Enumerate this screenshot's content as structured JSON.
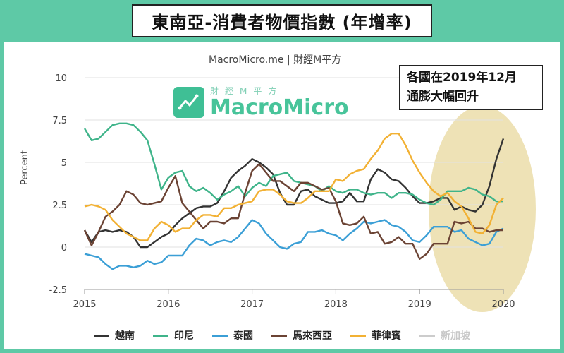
{
  "title": "東南亞-消費者物價指數 (年增率)",
  "source": "MacroMicro.me | 財經M平方",
  "watermark": {
    "sub": "財經M平方",
    "main": "MacroMicro"
  },
  "callout": {
    "line1": "各國在2019年12月",
    "line2": "通膨大幅回升"
  },
  "colors": {
    "background": "#5ec9a6",
    "highlight": "#ecdfae"
  },
  "chart_data": {
    "type": "line",
    "ylabel": "Percent",
    "ylim": [
      -2.5,
      10
    ],
    "yticks": [
      -2.5,
      0,
      2.5,
      5,
      7.5,
      10
    ],
    "xlim": [
      2015,
      2020
    ],
    "xticks": [
      2015,
      2016,
      2017,
      2018,
      2019,
      2020
    ],
    "grid": true,
    "legend_position": "bottom",
    "series": [
      {
        "name": "越南",
        "color": "#333333",
        "x": [
          2015.0,
          2015.083,
          2015.167,
          2015.25,
          2015.333,
          2015.417,
          2015.5,
          2015.583,
          2015.667,
          2015.75,
          2015.833,
          2015.917,
          2016.0,
          2016.083,
          2016.167,
          2016.25,
          2016.333,
          2016.417,
          2016.5,
          2016.583,
          2016.667,
          2016.75,
          2016.833,
          2016.917,
          2017.0,
          2017.083,
          2017.167,
          2017.25,
          2017.333,
          2017.417,
          2017.5,
          2017.583,
          2017.667,
          2017.75,
          2017.833,
          2017.917,
          2018.0,
          2018.083,
          2018.167,
          2018.25,
          2018.333,
          2018.417,
          2018.5,
          2018.583,
          2018.667,
          2018.75,
          2018.833,
          2018.917,
          2019.0,
          2019.083,
          2019.167,
          2019.25,
          2019.333,
          2019.417,
          2019.5,
          2019.583,
          2019.667,
          2019.75,
          2019.833,
          2019.917,
          2020.0
        ],
        "y": [
          1.0,
          0.3,
          0.9,
          1.0,
          0.9,
          1.0,
          0.9,
          0.6,
          0.0,
          0.0,
          0.3,
          0.6,
          0.8,
          1.3,
          1.7,
          2.0,
          2.3,
          2.4,
          2.4,
          2.6,
          3.3,
          4.1,
          4.5,
          4.8,
          5.2,
          5.0,
          4.7,
          4.3,
          3.2,
          2.5,
          2.5,
          3.3,
          3.4,
          3.0,
          2.8,
          2.6,
          2.6,
          2.7,
          3.2,
          2.7,
          2.7,
          4.0,
          4.6,
          4.4,
          4.0,
          3.9,
          3.5,
          3.0,
          2.6,
          2.6,
          2.7,
          2.9,
          2.9,
          2.2,
          2.4,
          2.2,
          2.1,
          2.5,
          3.6,
          5.2,
          6.4
        ]
      },
      {
        "name": "印尼",
        "color": "#3fb48a",
        "x": [
          2015.0,
          2015.083,
          2015.167,
          2015.25,
          2015.333,
          2015.417,
          2015.5,
          2015.583,
          2015.667,
          2015.75,
          2015.833,
          2015.917,
          2016.0,
          2016.083,
          2016.167,
          2016.25,
          2016.333,
          2016.417,
          2016.5,
          2016.583,
          2016.667,
          2016.75,
          2016.833,
          2016.917,
          2017.0,
          2017.083,
          2017.167,
          2017.25,
          2017.333,
          2017.417,
          2017.5,
          2017.583,
          2017.667,
          2017.75,
          2017.833,
          2017.917,
          2018.0,
          2018.083,
          2018.167,
          2018.25,
          2018.333,
          2018.417,
          2018.5,
          2018.583,
          2018.667,
          2018.75,
          2018.833,
          2018.917,
          2019.0,
          2019.083,
          2019.167,
          2019.25,
          2019.333,
          2019.417,
          2019.5,
          2019.583,
          2019.667,
          2019.75,
          2019.833,
          2019.917,
          2020.0
        ],
        "y": [
          7.0,
          6.3,
          6.4,
          6.8,
          7.2,
          7.3,
          7.3,
          7.2,
          6.8,
          6.3,
          4.9,
          3.4,
          4.1,
          4.4,
          4.5,
          3.6,
          3.3,
          3.5,
          3.2,
          2.8,
          3.1,
          3.3,
          3.6,
          3.0,
          3.5,
          3.8,
          3.6,
          4.2,
          4.3,
          4.4,
          3.9,
          3.8,
          3.7,
          3.6,
          3.3,
          3.6,
          3.3,
          3.2,
          3.4,
          3.4,
          3.2,
          3.1,
          3.2,
          3.2,
          2.9,
          3.2,
          3.2,
          3.1,
          2.8,
          2.6,
          2.5,
          2.8,
          3.3,
          3.3,
          3.3,
          3.5,
          3.4,
          3.1,
          3.0,
          2.7,
          2.7
        ]
      },
      {
        "name": "泰國",
        "color": "#3b9fd6",
        "x": [
          2015.0,
          2015.083,
          2015.167,
          2015.25,
          2015.333,
          2015.417,
          2015.5,
          2015.583,
          2015.667,
          2015.75,
          2015.833,
          2015.917,
          2016.0,
          2016.083,
          2016.167,
          2016.25,
          2016.333,
          2016.417,
          2016.5,
          2016.583,
          2016.667,
          2016.75,
          2016.833,
          2016.917,
          2017.0,
          2017.083,
          2017.167,
          2017.25,
          2017.333,
          2017.417,
          2017.5,
          2017.583,
          2017.667,
          2017.75,
          2017.833,
          2017.917,
          2018.0,
          2018.083,
          2018.167,
          2018.25,
          2018.333,
          2018.417,
          2018.5,
          2018.583,
          2018.667,
          2018.75,
          2018.833,
          2018.917,
          2019.0,
          2019.083,
          2019.167,
          2019.25,
          2019.333,
          2019.417,
          2019.5,
          2019.583,
          2019.667,
          2019.75,
          2019.833,
          2019.917,
          2020.0
        ],
        "y": [
          -0.4,
          -0.5,
          -0.6,
          -1.0,
          -1.3,
          -1.1,
          -1.1,
          -1.2,
          -1.1,
          -0.8,
          -1.0,
          -0.9,
          -0.5,
          -0.5,
          -0.5,
          0.1,
          0.5,
          0.4,
          0.1,
          0.3,
          0.4,
          0.3,
          0.6,
          1.1,
          1.6,
          1.4,
          0.8,
          0.4,
          0.0,
          -0.1,
          0.2,
          0.3,
          0.9,
          0.9,
          1.0,
          0.8,
          0.7,
          0.4,
          0.8,
          1.1,
          1.5,
          1.4,
          1.5,
          1.6,
          1.3,
          1.2,
          0.9,
          0.4,
          0.3,
          0.7,
          1.2,
          1.2,
          1.2,
          0.9,
          1.0,
          0.5,
          0.3,
          0.1,
          0.2,
          0.9,
          1.1
        ]
      },
      {
        "name": "馬來西亞",
        "color": "#6b4334",
        "x": [
          2015.0,
          2015.083,
          2015.167,
          2015.25,
          2015.333,
          2015.417,
          2015.5,
          2015.583,
          2015.667,
          2015.75,
          2015.833,
          2015.917,
          2016.0,
          2016.083,
          2016.167,
          2016.25,
          2016.333,
          2016.417,
          2016.5,
          2016.583,
          2016.667,
          2016.75,
          2016.833,
          2016.917,
          2017.0,
          2017.083,
          2017.167,
          2017.25,
          2017.333,
          2017.417,
          2017.5,
          2017.583,
          2017.667,
          2017.75,
          2017.833,
          2017.917,
          2018.0,
          2018.083,
          2018.167,
          2018.25,
          2018.333,
          2018.417,
          2018.5,
          2018.583,
          2018.667,
          2018.75,
          2018.833,
          2018.917,
          2019.0,
          2019.083,
          2019.167,
          2019.25,
          2019.333,
          2019.417,
          2019.5,
          2019.583,
          2019.667,
          2019.75,
          2019.833,
          2019.917,
          2020.0
        ],
        "y": [
          1.0,
          0.1,
          0.9,
          1.8,
          2.1,
          2.5,
          3.3,
          3.1,
          2.6,
          2.5,
          2.6,
          2.7,
          3.5,
          4.2,
          2.6,
          2.1,
          1.6,
          1.1,
          1.5,
          1.5,
          1.4,
          1.7,
          1.7,
          3.2,
          4.5,
          4.9,
          4.4,
          3.9,
          3.9,
          3.6,
          3.3,
          3.8,
          3.8,
          3.6,
          3.4,
          3.5,
          2.7,
          1.4,
          1.3,
          1.4,
          1.8,
          0.8,
          0.9,
          0.2,
          0.3,
          0.6,
          0.2,
          0.2,
          -0.7,
          -0.4,
          0.2,
          0.2,
          0.2,
          1.5,
          1.4,
          1.5,
          1.1,
          1.1,
          0.9,
          1.0,
          1.0
        ]
      },
      {
        "name": "菲律賓",
        "color": "#f2b134",
        "x": [
          2015.0,
          2015.083,
          2015.167,
          2015.25,
          2015.333,
          2015.417,
          2015.5,
          2015.583,
          2015.667,
          2015.75,
          2015.833,
          2015.917,
          2016.0,
          2016.083,
          2016.167,
          2016.25,
          2016.333,
          2016.417,
          2016.5,
          2016.583,
          2016.667,
          2016.75,
          2016.833,
          2016.917,
          2017.0,
          2017.083,
          2017.167,
          2017.25,
          2017.333,
          2017.417,
          2017.5,
          2017.583,
          2017.667,
          2017.75,
          2017.833,
          2017.917,
          2018.0,
          2018.083,
          2018.167,
          2018.25,
          2018.333,
          2018.417,
          2018.5,
          2018.583,
          2018.667,
          2018.75,
          2018.833,
          2018.917,
          2019.0,
          2019.083,
          2019.167,
          2019.25,
          2019.333,
          2019.417,
          2019.5,
          2019.583,
          2019.667,
          2019.75,
          2019.833,
          2019.917,
          2020.0
        ],
        "y": [
          2.4,
          2.5,
          2.4,
          2.2,
          1.6,
          1.2,
          0.8,
          0.6,
          0.4,
          0.4,
          1.1,
          1.5,
          1.3,
          0.9,
          1.1,
          1.1,
          1.6,
          1.9,
          1.9,
          1.8,
          2.3,
          2.3,
          2.5,
          2.6,
          2.7,
          3.3,
          3.4,
          3.4,
          3.1,
          2.7,
          2.6,
          2.6,
          2.9,
          3.3,
          3.3,
          3.3,
          4.0,
          3.9,
          4.3,
          4.5,
          4.6,
          5.2,
          5.7,
          6.4,
          6.7,
          6.7,
          6.0,
          5.1,
          4.4,
          3.8,
          3.3,
          3.0,
          3.2,
          2.7,
          2.4,
          1.7,
          0.9,
          0.8,
          1.3,
          2.5,
          2.9
        ]
      },
      {
        "name": "新加坡",
        "color": "#cccccc",
        "hidden": true,
        "x": [],
        "y": []
      }
    ]
  }
}
